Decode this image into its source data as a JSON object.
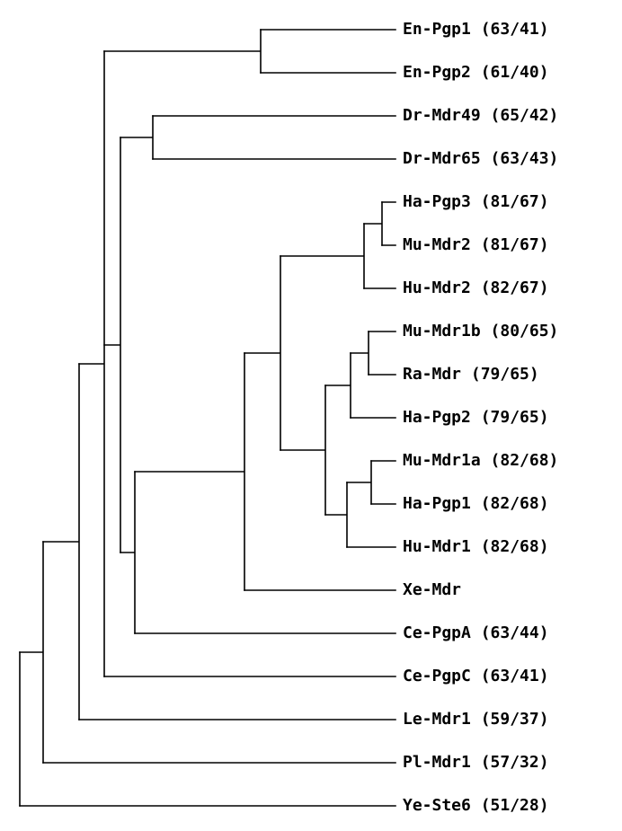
{
  "tree": {
    "leaves": [
      {
        "id": "en-pgp1",
        "label": "En-Pgp1 (63/41)"
      },
      {
        "id": "en-pgp2",
        "label": "En-Pgp2 (61/40)"
      },
      {
        "id": "dr-mdr49",
        "label": "Dr-Mdr49 (65/42)"
      },
      {
        "id": "dr-mdr65",
        "label": "Dr-Mdr65 (63/43)"
      },
      {
        "id": "ha-pgp3",
        "label": "Ha-Pgp3 (81/67)"
      },
      {
        "id": "mu-mdr2",
        "label": "Mu-Mdr2 (81/67)"
      },
      {
        "id": "hu-mdr2",
        "label": "Hu-Mdr2 (82/67)"
      },
      {
        "id": "mu-mdr1b",
        "label": "Mu-Mdr1b (80/65)"
      },
      {
        "id": "ra-mdr",
        "label": "Ra-Mdr  (79/65)"
      },
      {
        "id": "ha-pgp2",
        "label": "Ha-Pgp2 (79/65)"
      },
      {
        "id": "mu-mdr1a",
        "label": "Mu-Mdr1a (82/68)"
      },
      {
        "id": "ha-pgp1",
        "label": "Ha-Pgp1 (82/68)"
      },
      {
        "id": "hu-mdr1",
        "label": "Hu-Mdr1 (82/68)"
      },
      {
        "id": "xe-mdr",
        "label": "Xe-Mdr"
      },
      {
        "id": "ce-pgpa",
        "label": "Ce-PgpA (63/44)"
      },
      {
        "id": "ce-pgpc",
        "label": "Ce-PgpC (63/41)"
      },
      {
        "id": "le-mdr1",
        "label": "Le-Mdr1 (59/37)"
      },
      {
        "id": "pl-mdr1",
        "label": "Pl-Mdr1 (57/32)"
      },
      {
        "id": "ye-ste6",
        "label": "Ye-Ste6 (51/28)"
      }
    ]
  }
}
